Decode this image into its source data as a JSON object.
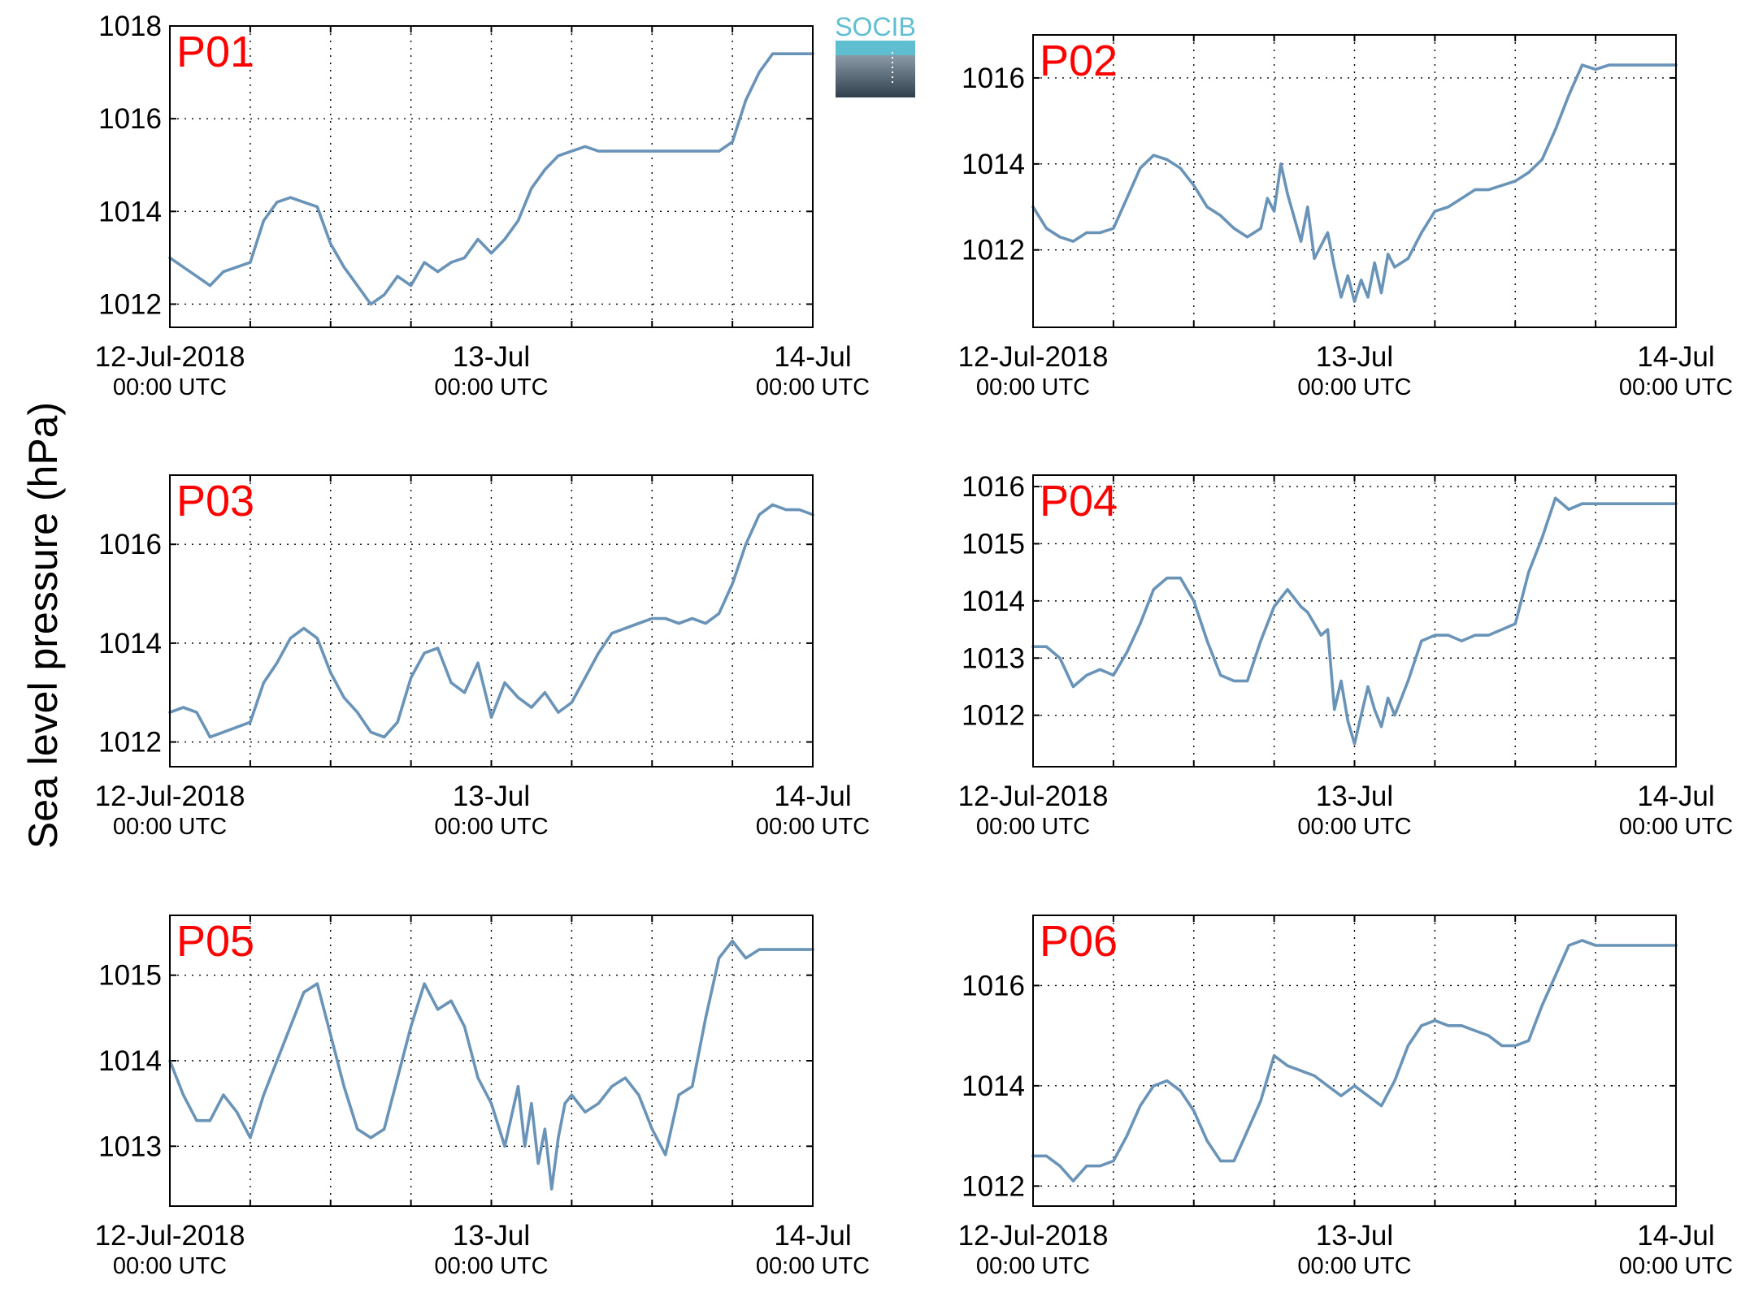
{
  "figure": {
    "ylabel": "Sea level pressure (hPa)",
    "logo_text": "SOCIB",
    "line_color": "#6a93b8",
    "label_color": "#ff0000"
  },
  "chart_data": [
    {
      "type": "line",
      "label": "P01",
      "xlim": [
        0,
        48
      ],
      "ylim": [
        1011.5,
        1018
      ],
      "yticks": [
        1012,
        1014,
        1016,
        1018
      ],
      "xticks": [
        {
          "date": "12-Jul-2018",
          "time": "00:00 UTC"
        },
        {
          "date": "13-Jul",
          "time": "00:00 UTC"
        },
        {
          "date": "14-Jul",
          "time": "00:00 UTC"
        }
      ],
      "hours": [
        0,
        1,
        2,
        3,
        4,
        5,
        6,
        7,
        8,
        9,
        10,
        11,
        12,
        13,
        14,
        15,
        16,
        17,
        18,
        19,
        20,
        21,
        22,
        23,
        24,
        25,
        26,
        27,
        28,
        29,
        30,
        31,
        32,
        33,
        34,
        35,
        36,
        37,
        38,
        39,
        40,
        41,
        42,
        43,
        44,
        45,
        46,
        47,
        48
      ],
      "values": [
        1013.0,
        1012.8,
        1012.6,
        1012.4,
        1012.7,
        1012.8,
        1012.9,
        1013.8,
        1014.2,
        1014.3,
        1014.2,
        1014.1,
        1013.3,
        1012.8,
        1012.4,
        1012.0,
        1012.2,
        1012.6,
        1012.4,
        1012.9,
        1012.7,
        1012.9,
        1013.0,
        1013.4,
        1013.1,
        1013.4,
        1013.8,
        1014.5,
        1014.9,
        1015.2,
        1015.3,
        1015.4,
        1015.3,
        1015.3,
        1015.3,
        1015.3,
        1015.3,
        1015.3,
        1015.3,
        1015.3,
        1015.3,
        1015.3,
        1015.5,
        1016.4,
        1017.0,
        1017.4,
        1017.4,
        1017.4,
        1017.4
      ]
    },
    {
      "type": "line",
      "label": "P02",
      "xlim": [
        0,
        48
      ],
      "ylim": [
        1010.2,
        1017
      ],
      "yticks": [
        1012,
        1014,
        1016
      ],
      "xticks": [
        {
          "date": "12-Jul-2018",
          "time": "00:00 UTC"
        },
        {
          "date": "13-Jul",
          "time": "00:00 UTC"
        },
        {
          "date": "14-Jul",
          "time": "00:00 UTC"
        }
      ],
      "hours": [
        0,
        1,
        2,
        3,
        4,
        5,
        6,
        7,
        8,
        9,
        10,
        11,
        12,
        13,
        14,
        15,
        16,
        17,
        17.5,
        18,
        18.5,
        19,
        20,
        20.5,
        21,
        22,
        22.5,
        23,
        23.5,
        24,
        24.5,
        25,
        25.5,
        26,
        26.5,
        27,
        28,
        29,
        30,
        31,
        32,
        33,
        34,
        35,
        36,
        37,
        38,
        39,
        40,
        41,
        42,
        43,
        44,
        45,
        46,
        47,
        48
      ],
      "values": [
        1013.0,
        1012.5,
        1012.3,
        1012.2,
        1012.4,
        1012.4,
        1012.5,
        1013.2,
        1013.9,
        1014.2,
        1014.1,
        1013.9,
        1013.5,
        1013.0,
        1012.8,
        1012.5,
        1012.3,
        1012.5,
        1013.2,
        1012.9,
        1014.0,
        1013.3,
        1012.2,
        1013.0,
        1011.8,
        1012.4,
        1011.6,
        1010.9,
        1011.4,
        1010.8,
        1011.3,
        1010.9,
        1011.7,
        1011.0,
        1011.9,
        1011.6,
        1011.8,
        1012.4,
        1012.9,
        1013.0,
        1013.2,
        1013.4,
        1013.4,
        1013.5,
        1013.6,
        1013.8,
        1014.1,
        1014.8,
        1015.6,
        1016.3,
        1016.2,
        1016.3,
        1016.3,
        1016.3,
        1016.3,
        1016.3,
        1016.3
      ]
    },
    {
      "type": "line",
      "label": "P03",
      "xlim": [
        0,
        48
      ],
      "ylim": [
        1011.5,
        1017.4
      ],
      "yticks": [
        1012,
        1014,
        1016
      ],
      "xticks": [
        {
          "date": "12-Jul-2018",
          "time": "00:00 UTC"
        },
        {
          "date": "13-Jul",
          "time": "00:00 UTC"
        },
        {
          "date": "14-Jul",
          "time": "00:00 UTC"
        }
      ],
      "hours": [
        0,
        1,
        2,
        3,
        4,
        5,
        6,
        7,
        8,
        9,
        10,
        11,
        12,
        13,
        14,
        15,
        16,
        17,
        18,
        19,
        20,
        21,
        22,
        23,
        24,
        25,
        26,
        27,
        28,
        29,
        30,
        31,
        32,
        33,
        34,
        35,
        36,
        37,
        38,
        39,
        40,
        41,
        42,
        43,
        44,
        45,
        46,
        47,
        48
      ],
      "values": [
        1012.6,
        1012.7,
        1012.6,
        1012.1,
        1012.2,
        1012.3,
        1012.4,
        1013.2,
        1013.6,
        1014.1,
        1014.3,
        1014.1,
        1013.4,
        1012.9,
        1012.6,
        1012.2,
        1012.1,
        1012.4,
        1013.3,
        1013.8,
        1013.9,
        1013.2,
        1013.0,
        1013.6,
        1012.5,
        1013.2,
        1012.9,
        1012.7,
        1013.0,
        1012.6,
        1012.8,
        1013.3,
        1013.8,
        1014.2,
        1014.3,
        1014.4,
        1014.5,
        1014.5,
        1014.4,
        1014.5,
        1014.4,
        1014.6,
        1015.2,
        1016.0,
        1016.6,
        1016.8,
        1016.7,
        1016.7,
        1016.6
      ]
    },
    {
      "type": "line",
      "label": "P04",
      "xlim": [
        0,
        48
      ],
      "ylim": [
        1011.1,
        1016.2
      ],
      "yticks": [
        1012,
        1013,
        1014,
        1015,
        1016
      ],
      "xticks": [
        {
          "date": "12-Jul-2018",
          "time": "00:00 UTC"
        },
        {
          "date": "13-Jul",
          "time": "00:00 UTC"
        },
        {
          "date": "14-Jul",
          "time": "00:00 UTC"
        }
      ],
      "hours": [
        0,
        1,
        2,
        3,
        4,
        5,
        6,
        7,
        8,
        9,
        10,
        11,
        12,
        13,
        14,
        15,
        16,
        17,
        18,
        19,
        20,
        20.5,
        21,
        21.5,
        22,
        22.5,
        23,
        23.5,
        24,
        24.5,
        25,
        25.5,
        26,
        26.5,
        27,
        27.5,
        28,
        29,
        30,
        31,
        32,
        33,
        34,
        35,
        36,
        37,
        38,
        39,
        40,
        41,
        42,
        43,
        44,
        45,
        46,
        47,
        48
      ],
      "values": [
        1013.2,
        1013.2,
        1013.0,
        1012.5,
        1012.7,
        1012.8,
        1012.7,
        1013.1,
        1013.6,
        1014.2,
        1014.4,
        1014.4,
        1014.0,
        1013.3,
        1012.7,
        1012.6,
        1012.6,
        1013.3,
        1013.9,
        1014.2,
        1013.9,
        1013.8,
        1013.6,
        1013.4,
        1013.5,
        1012.1,
        1012.6,
        1011.9,
        1011.5,
        1012.0,
        1012.5,
        1012.1,
        1011.8,
        1012.3,
        1012.0,
        1012.3,
        1012.6,
        1013.3,
        1013.4,
        1013.4,
        1013.3,
        1013.4,
        1013.4,
        1013.5,
        1013.6,
        1014.5,
        1015.1,
        1015.8,
        1015.6,
        1015.7,
        1015.7,
        1015.7,
        1015.7,
        1015.7,
        1015.7,
        1015.7,
        1015.7
      ]
    },
    {
      "type": "line",
      "label": "P05",
      "xlim": [
        0,
        48
      ],
      "ylim": [
        1012.3,
        1015.7
      ],
      "yticks": [
        1013,
        1014,
        1015
      ],
      "xticks": [
        {
          "date": "12-Jul-2018",
          "time": "00:00 UTC"
        },
        {
          "date": "13-Jul",
          "time": "00:00 UTC"
        },
        {
          "date": "14-Jul",
          "time": "00:00 UTC"
        }
      ],
      "hours": [
        0,
        1,
        2,
        3,
        4,
        5,
        6,
        7,
        8,
        9,
        10,
        11,
        12,
        13,
        14,
        15,
        16,
        17,
        18,
        19,
        20,
        21,
        22,
        23,
        24,
        25,
        26,
        26.5,
        27,
        27.5,
        28,
        28.5,
        29,
        29.5,
        30,
        31,
        32,
        33,
        34,
        35,
        36,
        37,
        38,
        39,
        40,
        41,
        42,
        43,
        44,
        45,
        46,
        47,
        48
      ],
      "values": [
        1014.0,
        1013.6,
        1013.3,
        1013.3,
        1013.6,
        1013.4,
        1013.1,
        1013.6,
        1014.0,
        1014.4,
        1014.8,
        1014.9,
        1014.3,
        1013.7,
        1013.2,
        1013.1,
        1013.2,
        1013.8,
        1014.4,
        1014.9,
        1014.6,
        1014.7,
        1014.4,
        1013.8,
        1013.5,
        1013.0,
        1013.7,
        1013.0,
        1013.5,
        1012.8,
        1013.2,
        1012.5,
        1013.1,
        1013.5,
        1013.6,
        1013.4,
        1013.5,
        1013.7,
        1013.8,
        1013.6,
        1013.2,
        1012.9,
        1013.6,
        1013.7,
        1014.5,
        1015.2,
        1015.4,
        1015.2,
        1015.3,
        1015.3,
        1015.3,
        1015.3,
        1015.3
      ]
    },
    {
      "type": "line",
      "label": "P06",
      "xlim": [
        0,
        48
      ],
      "ylim": [
        1011.6,
        1017.4
      ],
      "yticks": [
        1012,
        1014,
        1016
      ],
      "xticks": [
        {
          "date": "12-Jul-2018",
          "time": "00:00 UTC"
        },
        {
          "date": "13-Jul",
          "time": "00:00 UTC"
        },
        {
          "date": "14-Jul",
          "time": "00:00 UTC"
        }
      ],
      "hours": [
        0,
        1,
        2,
        3,
        4,
        5,
        6,
        7,
        8,
        9,
        10,
        11,
        12,
        13,
        14,
        15,
        16,
        17,
        18,
        19,
        20,
        21,
        22,
        23,
        24,
        25,
        26,
        27,
        28,
        29,
        30,
        31,
        32,
        33,
        34,
        35,
        36,
        37,
        38,
        39,
        40,
        41,
        42,
        43,
        44,
        45,
        46,
        47,
        48
      ],
      "values": [
        1012.6,
        1012.6,
        1012.4,
        1012.1,
        1012.4,
        1012.4,
        1012.5,
        1013.0,
        1013.6,
        1014.0,
        1014.1,
        1013.9,
        1013.5,
        1012.9,
        1012.5,
        1012.5,
        1013.1,
        1013.7,
        1014.6,
        1014.4,
        1014.3,
        1014.2,
        1014.0,
        1013.8,
        1014.0,
        1013.8,
        1013.6,
        1014.1,
        1014.8,
        1015.2,
        1015.3,
        1015.2,
        1015.2,
        1015.1,
        1015.0,
        1014.8,
        1014.8,
        1014.9,
        1015.6,
        1016.2,
        1016.8,
        1016.9,
        1016.8,
        1016.8,
        1016.8,
        1016.8,
        1016.8,
        1016.8,
        1016.8
      ]
    }
  ]
}
